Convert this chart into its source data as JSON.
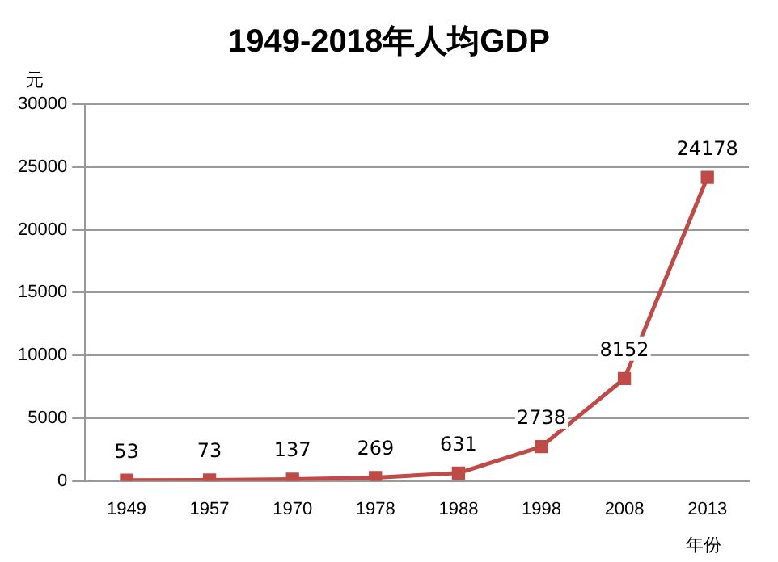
{
  "chart_data": {
    "type": "line",
    "title": "1949-2018年人均GDP",
    "xlabel": "年份",
    "ylabel": "元",
    "categories": [
      "1949",
      "1957",
      "1970",
      "1978",
      "1988",
      "1998",
      "2008",
      "2013"
    ],
    "series": [
      {
        "color": "#be4b48",
        "values": [
          53,
          73,
          137,
          269,
          631,
          2738,
          8152,
          24178
        ]
      }
    ],
    "ylim": [
      0,
      30000
    ],
    "yticks": [
      0,
      5000,
      10000,
      15000,
      20000,
      25000,
      30000
    ],
    "grid": "y",
    "legend": false,
    "marker": "square",
    "line_style": "solid",
    "data_labels": true
  }
}
